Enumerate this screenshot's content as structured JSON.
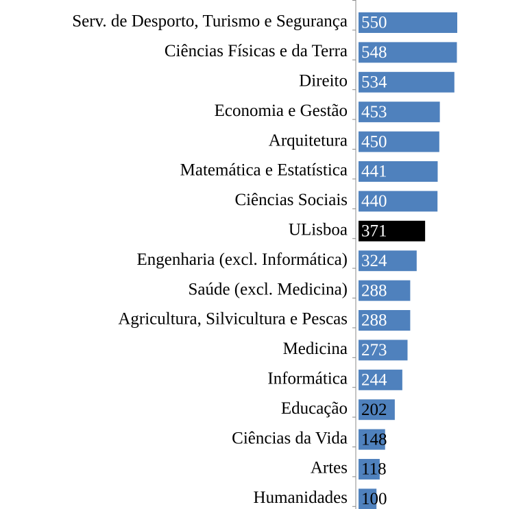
{
  "chart_data": {
    "type": "barh",
    "categories": [
      "Serv. de Desporto, Turismo e Segurança",
      "Ciências Físicas e da Terra",
      "Direito",
      "Economia e Gestão",
      "Arquitetura",
      "Matemática e Estatística",
      "Ciências Sociais",
      "ULisboa",
      "Engenharia (excl. Informática)",
      "Saúde (excl. Medicina)",
      "Agricultura, Silvicultura e Pescas",
      "Medicina",
      "Informática",
      "Educação",
      "Ciências da Vida",
      "Artes",
      "Humanidades"
    ],
    "values": [
      550,
      548,
      534,
      453,
      450,
      441,
      440,
      371,
      324,
      288,
      288,
      273,
      244,
      202,
      148,
      118,
      100
    ],
    "colors": [
      "#4f81bd",
      "#4f81bd",
      "#4f81bd",
      "#4f81bd",
      "#4f81bd",
      "#4f81bd",
      "#4f81bd",
      "#000000",
      "#4f81bd",
      "#4f81bd",
      "#4f81bd",
      "#4f81bd",
      "#4f81bd",
      "#4f81bd",
      "#4f81bd",
      "#4f81bd",
      "#4f81bd"
    ],
    "xlim": [
      0,
      550
    ]
  }
}
